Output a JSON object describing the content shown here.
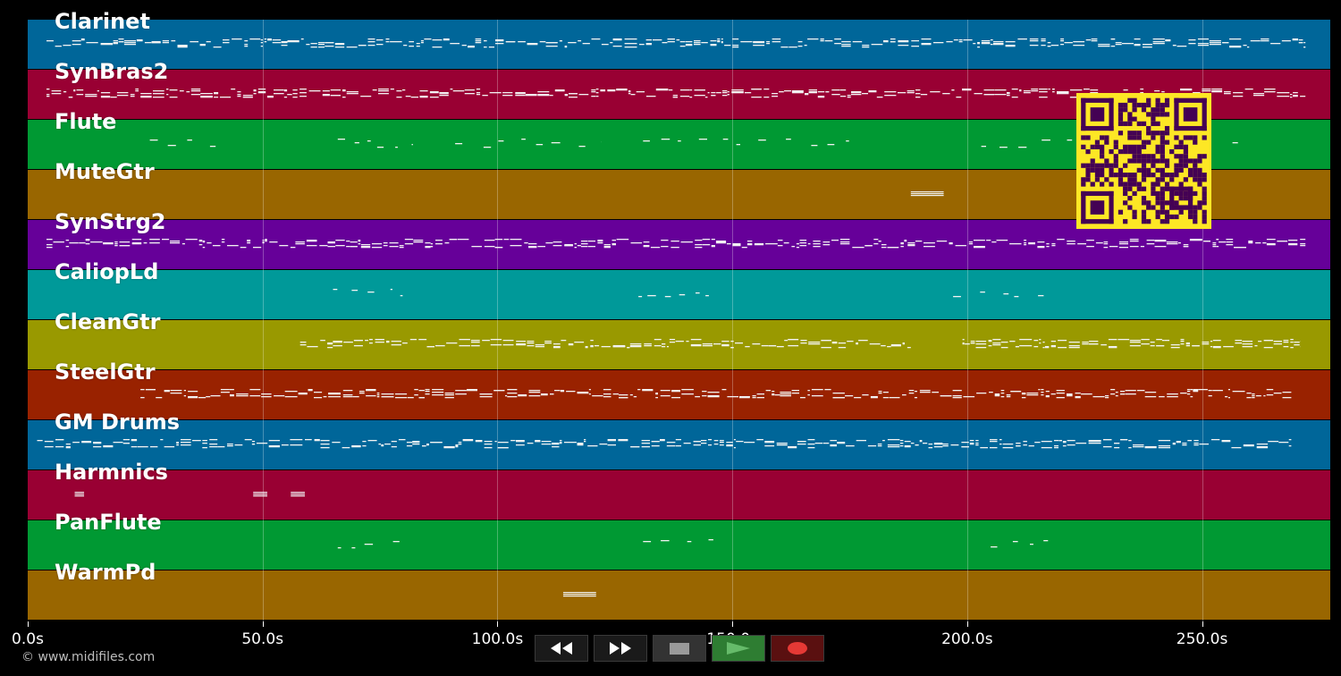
{
  "tracks": [
    {
      "name": "Clarinet",
      "color": "#006699"
    },
    {
      "name": "SynBras2",
      "color": "#990033"
    },
    {
      "name": "Flute",
      "color": "#009933"
    },
    {
      "name": "MuteGtr",
      "color": "#996600"
    },
    {
      "name": "SynStrg2",
      "color": "#660099"
    },
    {
      "name": "CaliopLd",
      "color": "#009999"
    },
    {
      "name": "CleanGtr",
      "color": "#999900"
    },
    {
      "name": "SteelGtr",
      "color": "#992200"
    },
    {
      "name": "GM Drums",
      "color": "#006699"
    },
    {
      "name": "Harmnics",
      "color": "#990033"
    },
    {
      "name": "PanFlute",
      "color": "#009933"
    },
    {
      "name": "WarmPd",
      "color": "#996600"
    }
  ],
  "time_axis": {
    "ticks": [
      {
        "value": 0,
        "label": "0.0s"
      },
      {
        "value": 50,
        "label": "50.0s"
      },
      {
        "value": 100,
        "label": "100.0s"
      },
      {
        "value": 150,
        "label": "150.0s"
      },
      {
        "value": 200,
        "label": "200.0s"
      },
      {
        "value": 250,
        "label": "250.0s"
      }
    ],
    "max_seconds": 277.3
  },
  "note_activity": [
    [
      [
        4,
        272,
        "dense"
      ]
    ],
    [
      [
        4,
        272,
        "dense"
      ]
    ],
    [
      [
        26,
        40,
        "sparse"
      ],
      [
        66,
        82,
        "sparse"
      ],
      [
        91,
        122,
        "sparse"
      ],
      [
        131,
        178,
        "sparse"
      ],
      [
        203,
        258,
        "sparse"
      ]
    ],
    [
      [
        188,
        195,
        "block"
      ]
    ],
    [
      [
        4,
        272,
        "dense"
      ]
    ],
    [
      [
        65,
        80,
        "sparse"
      ],
      [
        130,
        145,
        "sparse"
      ],
      [
        197,
        220,
        "sparse"
      ]
    ],
    [
      [
        58,
        188,
        "dense"
      ],
      [
        199,
        271,
        "dense"
      ]
    ],
    [
      [
        24,
        269,
        "dense"
      ]
    ],
    [
      [
        2,
        269,
        "dense"
      ]
    ],
    [
      [
        10,
        12,
        "block"
      ],
      [
        48,
        51,
        "block"
      ],
      [
        56,
        59,
        "block"
      ]
    ],
    [
      [
        66,
        82,
        "sparse"
      ],
      [
        131,
        147,
        "sparse"
      ],
      [
        205,
        220,
        "sparse"
      ]
    ],
    [
      [
        114,
        121,
        "block"
      ]
    ]
  ],
  "watermark": "© www.midifiles.com",
  "qr": {
    "fg": "#440154",
    "bg": "#fde725"
  },
  "transport": [
    {
      "name": "rewind",
      "icon": "rewind-icon"
    },
    {
      "name": "fast-forward",
      "icon": "fast-forward-icon"
    },
    {
      "name": "stop",
      "icon": "stop-icon"
    },
    {
      "name": "play",
      "icon": "play-icon"
    },
    {
      "name": "record",
      "icon": "record-icon"
    }
  ]
}
